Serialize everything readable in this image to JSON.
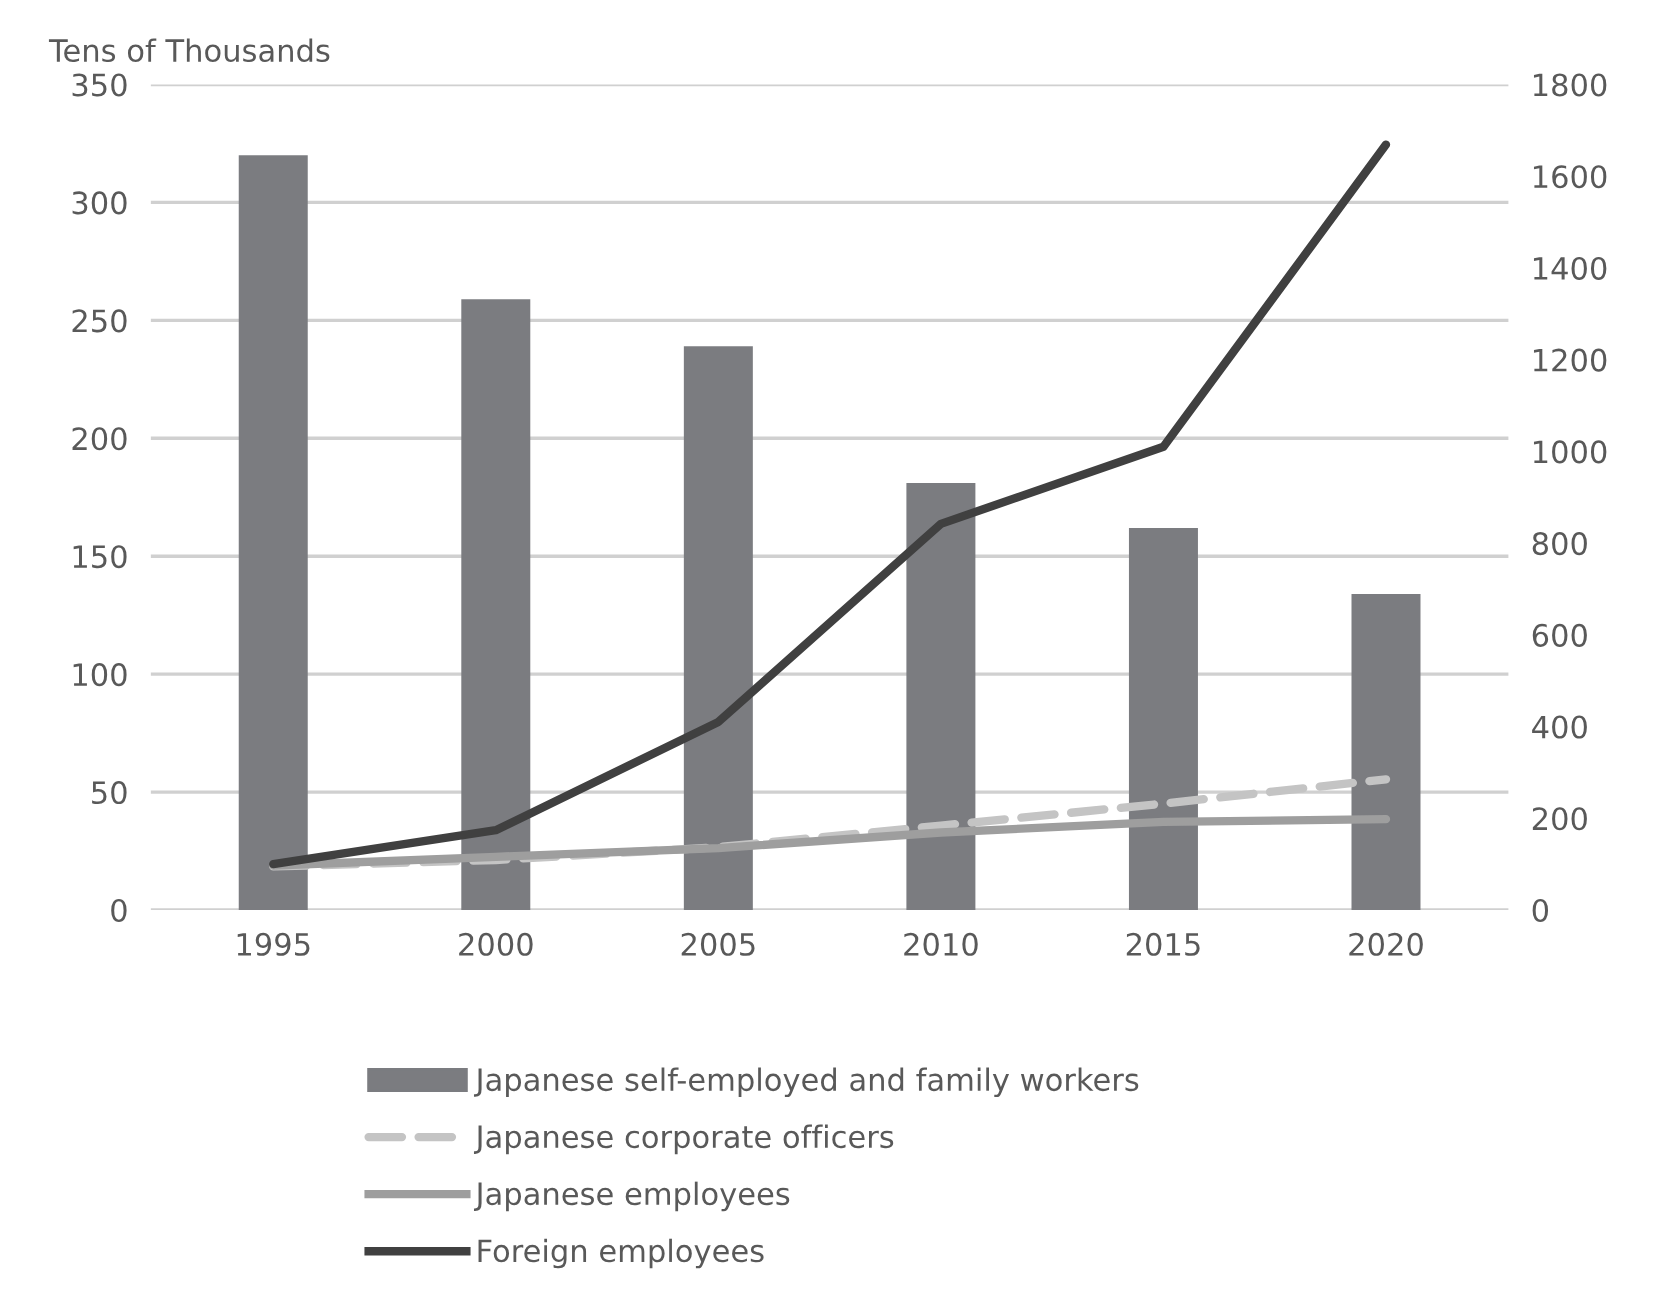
{
  "chart_data": {
    "type": "bar",
    "ylabel": "Tens of Thousands",
    "categories": [
      "1995",
      "2000",
      "2005",
      "2010",
      "2015",
      "2020"
    ],
    "series": [
      {
        "name": "Japanese self-employed and family workers",
        "color": "#7b7c80",
        "values": [
          320,
          259,
          239,
          181,
          162,
          134
        ]
      },
      {
        "name": "Japanese corporate officers",
        "type": "line",
        "axis": "y2",
        "line_style": "dashed",
        "color": "#c4c4c4",
        "values": [
          95,
          109,
          137,
          184,
          232,
          285
        ]
      },
      {
        "name": "Japanese employees",
        "type": "line",
        "axis": "y2",
        "line_style": "solid",
        "color": "#9e9e9e",
        "values": [
          97,
          116,
          135,
          169,
          192,
          198
        ]
      },
      {
        "name": "Foreign employees",
        "type": "line",
        "axis": "y2",
        "line_style": "solid",
        "color": "#404040",
        "values": [
          100,
          174,
          410,
          842,
          1010,
          1669
        ]
      }
    ],
    "ylim": [
      0,
      350
    ],
    "yticks": [
      0,
      50,
      100,
      150,
      200,
      250,
      300,
      350
    ],
    "y2lim": [
      0,
      1800
    ],
    "y2ticks": [
      0,
      200,
      400,
      600,
      800,
      1000,
      1200,
      1400,
      1600,
      1800
    ],
    "grid": "y",
    "legend": "bottom"
  }
}
